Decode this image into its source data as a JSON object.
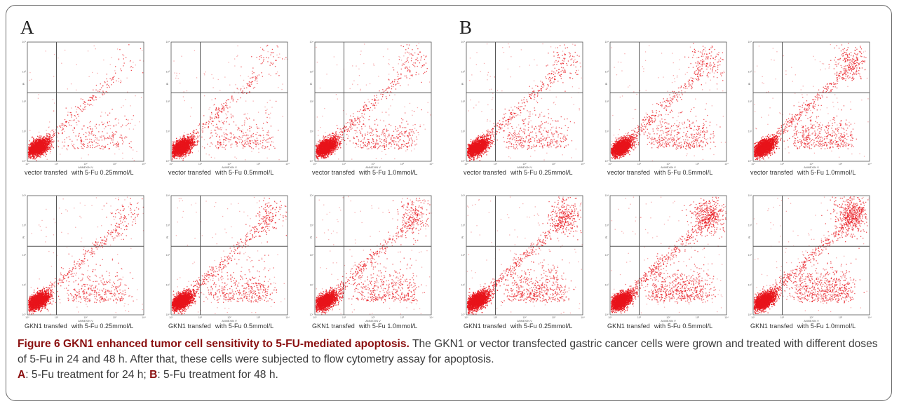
{
  "panel_labels": {
    "left": "A",
    "right": "B"
  },
  "axis_text": {
    "x_label": "ANNEXIN V",
    "y_label": "PI",
    "tick_labels": [
      "10⁰",
      "10¹",
      "10²",
      "10³",
      "10⁴"
    ]
  },
  "caption": {
    "title": "Figure 6 GKN1 enhanced tumor cell sensitivity to 5-FU-mediated apoptosis.",
    "body": " The GKN1 or vector transfected gastric cancer cells were grown and treated with different doses of 5-Fu in 24 and 48 h. After that, these cells were subjected to flow cytometry assay for apoptosis.",
    "a_key": "A",
    "a_text": ": 5-Fu treatment for 24 h; ",
    "b_key": "B",
    "b_text": ": 5-Fu treatment for 48 h."
  },
  "colors": {
    "dots": "#e8141b",
    "quadrant_lines": "#555555",
    "caption_accent": "#8a0f0f"
  },
  "chart_data": [
    {
      "type": "scatter",
      "panel": "A",
      "cell": "vector transfed",
      "dose": "with 5-Fu 0.25mmol/L",
      "xlabel": "ANNEXIN V",
      "ylabel": "PI",
      "x_scale": "log",
      "y_scale": "log",
      "xlim": [
        1,
        10000
      ],
      "ylim": [
        1,
        10000
      ],
      "quadrant_gate": [
        10,
        200
      ],
      "apoptosis_level": 0.15
    },
    {
      "type": "scatter",
      "panel": "A",
      "cell": "vector transfed",
      "dose": "with 5-Fu 0.5mmol/L",
      "xlabel": "ANNEXIN V",
      "ylabel": "PI",
      "x_scale": "log",
      "y_scale": "log",
      "xlim": [
        1,
        10000
      ],
      "ylim": [
        1,
        10000
      ],
      "quadrant_gate": [
        10,
        200
      ],
      "apoptosis_level": 0.22
    },
    {
      "type": "scatter",
      "panel": "A",
      "cell": "vector transfed",
      "dose": "with 5-Fu 1.0mmol/L",
      "xlabel": "ANNEXIN V",
      "ylabel": "PI",
      "x_scale": "log",
      "y_scale": "log",
      "xlim": [
        1,
        10000
      ],
      "ylim": [
        1,
        10000
      ],
      "quadrant_gate": [
        10,
        200
      ],
      "apoptosis_level": 0.3
    },
    {
      "type": "scatter",
      "panel": "B",
      "cell": "vector transfed",
      "dose": "with 5-Fu 0.25mmol/L",
      "xlabel": "ANNEXIN V",
      "ylabel": "PI",
      "x_scale": "log",
      "y_scale": "log",
      "xlim": [
        1,
        10000
      ],
      "ylim": [
        1,
        10000
      ],
      "quadrant_gate": [
        10,
        200
      ],
      "apoptosis_level": 0.34
    },
    {
      "type": "scatter",
      "panel": "B",
      "cell": "vector transfed",
      "dose": "with 5-Fu 0.5mmol/L",
      "xlabel": "ANNEXIN V",
      "ylabel": "PI",
      "x_scale": "log",
      "y_scale": "log",
      "xlim": [
        1,
        10000
      ],
      "ylim": [
        1,
        10000
      ],
      "quadrant_gate": [
        10,
        200
      ],
      "apoptosis_level": 0.4
    },
    {
      "type": "scatter",
      "panel": "B",
      "cell": "vector transfed",
      "dose": "with 5-Fu 1.0mmol/L",
      "xlabel": "ANNEXIN V",
      "ylabel": "PI",
      "x_scale": "log",
      "y_scale": "log",
      "xlim": [
        1,
        10000
      ],
      "ylim": [
        1,
        10000
      ],
      "quadrant_gate": [
        10,
        200
      ],
      "apoptosis_level": 0.48
    },
    {
      "type": "scatter",
      "panel": "A",
      "cell": "GKN1 transfed",
      "dose": "with 5-Fu 0.25mmol/L",
      "xlabel": "ANNEXIN V",
      "ylabel": "PI",
      "x_scale": "log",
      "y_scale": "log",
      "xlim": [
        1,
        10000
      ],
      "ylim": [
        1,
        10000
      ],
      "quadrant_gate": [
        10,
        200
      ],
      "apoptosis_level": 0.3
    },
    {
      "type": "scatter",
      "panel": "A",
      "cell": "GKN1 transfed",
      "dose": "with 5-Fu 0.5mmol/L",
      "xlabel": "ANNEXIN V",
      "ylabel": "PI",
      "x_scale": "log",
      "y_scale": "log",
      "xlim": [
        1,
        10000
      ],
      "ylim": [
        1,
        10000
      ],
      "quadrant_gate": [
        10,
        200
      ],
      "apoptosis_level": 0.38
    },
    {
      "type": "scatter",
      "panel": "A",
      "cell": "GKN1 transfed",
      "dose": "with 5-Fu 1.0mmol/L",
      "xlabel": "ANNEXIN V",
      "ylabel": "PI",
      "x_scale": "log",
      "y_scale": "log",
      "xlim": [
        1,
        10000
      ],
      "ylim": [
        1,
        10000
      ],
      "quadrant_gate": [
        10,
        200
      ],
      "apoptosis_level": 0.46
    },
    {
      "type": "scatter",
      "panel": "B",
      "cell": "GKN1 transfed",
      "dose": "with 5-Fu 0.25mmol/L",
      "xlabel": "ANNEXIN V",
      "ylabel": "PI",
      "x_scale": "log",
      "y_scale": "log",
      "xlim": [
        1,
        10000
      ],
      "ylim": [
        1,
        10000
      ],
      "quadrant_gate": [
        10,
        200
      ],
      "apoptosis_level": 0.55
    },
    {
      "type": "scatter",
      "panel": "B",
      "cell": "GKN1 transfed",
      "dose": "with 5-Fu 0.5mmol/L",
      "xlabel": "ANNEXIN V",
      "ylabel": "PI",
      "x_scale": "log",
      "y_scale": "log",
      "xlim": [
        1,
        10000
      ],
      "ylim": [
        1,
        10000
      ],
      "quadrant_gate": [
        10,
        200
      ],
      "apoptosis_level": 0.65
    },
    {
      "type": "scatter",
      "panel": "B",
      "cell": "GKN1 transfed",
      "dose": "with 5-Fu 1.0mmol/L",
      "xlabel": "ANNEXIN V",
      "ylabel": "PI",
      "x_scale": "log",
      "y_scale": "log",
      "xlim": [
        1,
        10000
      ],
      "ylim": [
        1,
        10000
      ],
      "quadrant_gate": [
        10,
        200
      ],
      "apoptosis_level": 0.7
    }
  ]
}
